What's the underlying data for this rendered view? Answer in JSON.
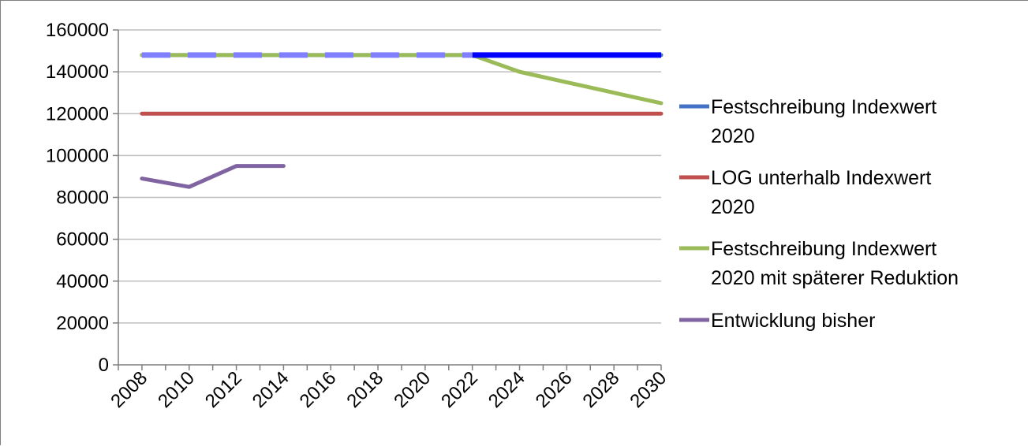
{
  "chart_data": {
    "type": "line",
    "title": "",
    "xlabel": "",
    "ylabel": "",
    "x_ticks": [
      "2008",
      "2010",
      "2012",
      "2014",
      "2016",
      "2018",
      "2020",
      "2022",
      "2024",
      "2026",
      "2028",
      "2030"
    ],
    "y_ticks": [
      "0",
      "20000",
      "40000",
      "60000",
      "80000",
      "100000",
      "120000",
      "140000",
      "160000"
    ],
    "xlim": [
      2008,
      2031
    ],
    "ylim": [
      0,
      160000
    ],
    "grid": "horizontal",
    "legend_position": "right",
    "series": [
      {
        "name": "Festschreibung Indexwert 2020",
        "legend_lines": [
          "Festschreibung Indexwert",
          "2020"
        ],
        "color": "#4472c4",
        "x": [
          2009,
          2031
        ],
        "y": [
          148000,
          148000
        ]
      },
      {
        "name": "LOG unterhalb Indexwert 2020",
        "legend_lines": [
          "LOG unterhalb Indexwert",
          "2020"
        ],
        "color": "#c0504d",
        "x": [
          2009,
          2031
        ],
        "y": [
          120000,
          120000
        ]
      },
      {
        "name": "Festschreibung Indexwert 2020 mit späterer Reduktion",
        "legend_lines": [
          "Festschreibung Indexwert",
          "2020 mit späterer Reduktion"
        ],
        "color": "#9bbb59",
        "x": [
          2009,
          2023,
          2025,
          2027,
          2029,
          2031
        ],
        "y": [
          148000,
          148000,
          140000,
          135000,
          130000,
          125000
        ]
      },
      {
        "name": "Entwicklung bisher",
        "legend_lines": [
          "Entwicklung bisher"
        ],
        "color": "#8064a2",
        "x": [
          2009,
          2011,
          2013,
          2015
        ],
        "y": [
          89000,
          85000,
          95000,
          95000
        ]
      }
    ],
    "overlay": {
      "color": "#0000ff",
      "dash_color": "#8080ff",
      "x": [
        2009,
        2031
      ],
      "y": [
        148000,
        148000
      ]
    }
  }
}
